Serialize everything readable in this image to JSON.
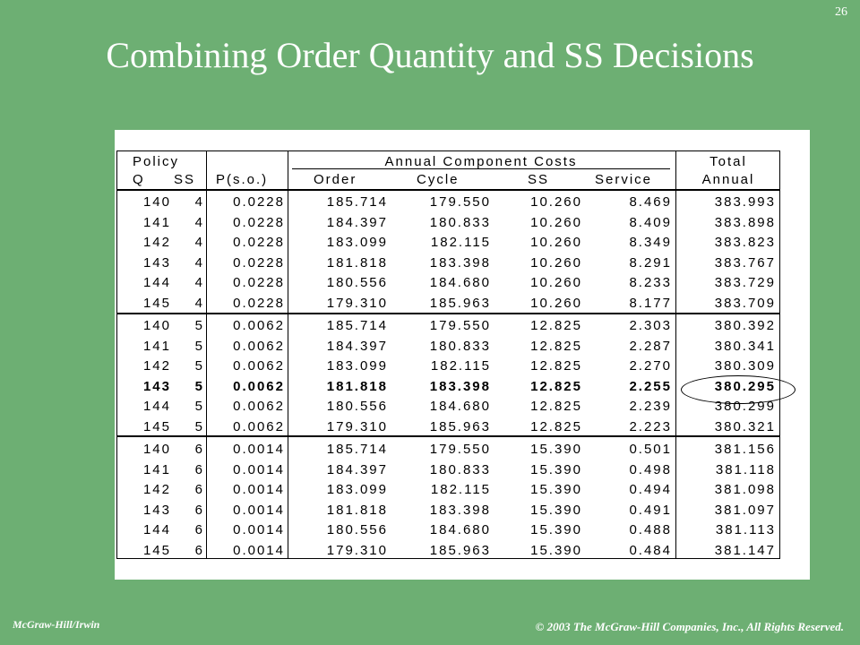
{
  "slide_number": "26",
  "title": "Combining Order Quantity and SS Decisions",
  "table": {
    "header": {
      "policy": "Policy",
      "q": "Q",
      "ss": "SS",
      "pso": "P(s.o.)",
      "annual_component_costs": "Annual Component Costs",
      "order": "Order",
      "cycle": "Cycle",
      "ss_cost": "SS",
      "service": "Service",
      "total": "Total",
      "annual": "Annual"
    },
    "groups": [
      {
        "rows": [
          {
            "q": "140",
            "ss": "4",
            "pso": "0.0228",
            "order": "185.714",
            "cycle": "179.550",
            "ssc": "10.260",
            "service": "8.469",
            "total": "383.993"
          },
          {
            "q": "141",
            "ss": "4",
            "pso": "0.0228",
            "order": "184.397",
            "cycle": "180.833",
            "ssc": "10.260",
            "service": "8.409",
            "total": "383.898"
          },
          {
            "q": "142",
            "ss": "4",
            "pso": "0.0228",
            "order": "183.099",
            "cycle": "182.115",
            "ssc": "10.260",
            "service": "8.349",
            "total": "383.823"
          },
          {
            "q": "143",
            "ss": "4",
            "pso": "0.0228",
            "order": "181.818",
            "cycle": "183.398",
            "ssc": "10.260",
            "service": "8.291",
            "total": "383.767"
          },
          {
            "q": "144",
            "ss": "4",
            "pso": "0.0228",
            "order": "180.556",
            "cycle": "184.680",
            "ssc": "10.260",
            "service": "8.233",
            "total": "383.729"
          },
          {
            "q": "145",
            "ss": "4",
            "pso": "0.0228",
            "order": "179.310",
            "cycle": "185.963",
            "ssc": "10.260",
            "service": "8.177",
            "total": "383.709"
          }
        ]
      },
      {
        "rows": [
          {
            "q": "140",
            "ss": "5",
            "pso": "0.0062",
            "order": "185.714",
            "cycle": "179.550",
            "ssc": "12.825",
            "service": "2.303",
            "total": "380.392"
          },
          {
            "q": "141",
            "ss": "5",
            "pso": "0.0062",
            "order": "184.397",
            "cycle": "180.833",
            "ssc": "12.825",
            "service": "2.287",
            "total": "380.341"
          },
          {
            "q": "142",
            "ss": "5",
            "pso": "0.0062",
            "order": "183.099",
            "cycle": "182.115",
            "ssc": "12.825",
            "service": "2.270",
            "total": "380.309"
          },
          {
            "q": "143",
            "ss": "5",
            "pso": "0.0062",
            "order": "181.818",
            "cycle": "183.398",
            "ssc": "12.825",
            "service": "2.255",
            "total": "380.295",
            "bold": true
          },
          {
            "q": "144",
            "ss": "5",
            "pso": "0.0062",
            "order": "180.556",
            "cycle": "184.680",
            "ssc": "12.825",
            "service": "2.239",
            "total": "380.299"
          },
          {
            "q": "145",
            "ss": "5",
            "pso": "0.0062",
            "order": "179.310",
            "cycle": "185.963",
            "ssc": "12.825",
            "service": "2.223",
            "total": "380.321"
          }
        ]
      },
      {
        "rows": [
          {
            "q": "140",
            "ss": "6",
            "pso": "0.0014",
            "order": "185.714",
            "cycle": "179.550",
            "ssc": "15.390",
            "service": "0.501",
            "total": "381.156"
          },
          {
            "q": "141",
            "ss": "6",
            "pso": "0.0014",
            "order": "184.397",
            "cycle": "180.833",
            "ssc": "15.390",
            "service": "0.498",
            "total": "381.118"
          },
          {
            "q": "142",
            "ss": "6",
            "pso": "0.0014",
            "order": "183.099",
            "cycle": "182.115",
            "ssc": "15.390",
            "service": "0.494",
            "total": "381.098"
          },
          {
            "q": "143",
            "ss": "6",
            "pso": "0.0014",
            "order": "181.818",
            "cycle": "183.398",
            "ssc": "15.390",
            "service": "0.491",
            "total": "381.097"
          },
          {
            "q": "144",
            "ss": "6",
            "pso": "0.0014",
            "order": "180.556",
            "cycle": "184.680",
            "ssc": "15.390",
            "service": "0.488",
            "total": "381.113"
          },
          {
            "q": "145",
            "ss": "6",
            "pso": "0.0014",
            "order": "179.310",
            "cycle": "185.963",
            "ssc": "15.390",
            "service": "0.484",
            "total": "381.147"
          }
        ]
      }
    ]
  },
  "footer": {
    "publisher": "McGraw-Hill/Irwin",
    "copyright": "© 2003 The McGraw-Hill Companies, Inc., All Rights Reserved."
  }
}
